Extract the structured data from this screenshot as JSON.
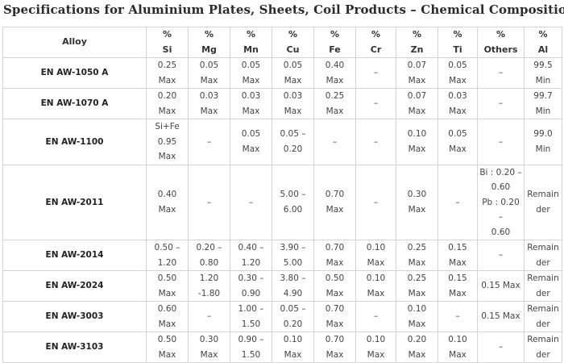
{
  "title": "Specifications for Aluminium Plates, Sheets, Coil Products – Chemical Composition",
  "columns": [
    {
      "pct": "",
      "name": "Alloy"
    },
    {
      "pct": "%",
      "name": "Si"
    },
    {
      "pct": "%",
      "name": "Mg"
    },
    {
      "pct": "%",
      "name": "Mn"
    },
    {
      "pct": "%",
      "name": "Cu"
    },
    {
      "pct": "%",
      "name": "Fe"
    },
    {
      "pct": "%",
      "name": "Cr"
    },
    {
      "pct": "%",
      "name": "Zn"
    },
    {
      "pct": "%",
      "name": "Ti"
    },
    {
      "pct": "%",
      "name": "Others"
    },
    {
      "pct": "%",
      "name": "Al"
    }
  ],
  "rows": [
    {
      "alloy": "EN AW-1050 A",
      "cells": [
        [
          "0.25",
          "Max"
        ],
        [
          "0.05",
          "Max"
        ],
        [
          "0.05",
          "Max"
        ],
        [
          "0.05",
          "Max"
        ],
        [
          "0.40",
          "Max"
        ],
        [
          "–"
        ],
        [
          "0.07",
          "Max"
        ],
        [
          "0.05",
          "Max"
        ],
        [
          "–"
        ],
        [
          "99.5 Min"
        ]
      ]
    },
    {
      "alloy": "EN AW-1070 A",
      "cells": [
        [
          "0.20",
          "Max"
        ],
        [
          "0.03",
          "Max"
        ],
        [
          "0.03",
          "Max"
        ],
        [
          "0.03",
          "Max"
        ],
        [
          "0.25",
          "Max"
        ],
        [
          "–"
        ],
        [
          "0.07",
          "Max"
        ],
        [
          "0.03",
          "Max"
        ],
        [
          "–"
        ],
        [
          "99.7 Min"
        ]
      ]
    },
    {
      "alloy": "EN AW-1100",
      "cells": [
        [
          "Si+Fe",
          "0.95 Max"
        ],
        [
          "–"
        ],
        [
          "0.05 Max"
        ],
        [
          "0.05 –",
          "0.20"
        ],
        [
          "–"
        ],
        [
          "–"
        ],
        [
          "0.10 Max"
        ],
        [
          "0.05 Max"
        ],
        [
          "–"
        ],
        [
          "99.0 Min"
        ]
      ]
    },
    {
      "alloy": "EN AW-2011",
      "cells": [
        [
          "0.40 Max"
        ],
        [
          "–"
        ],
        [
          "–"
        ],
        [
          "5.00 –",
          "6.00"
        ],
        [
          "0.70 Max"
        ],
        [
          "–"
        ],
        [
          "0.30 Max"
        ],
        [
          "–"
        ],
        [
          "Bi : 0.20 –",
          "0.60",
          "Pb : 0.20 –",
          "0.60"
        ],
        [
          "Remainder"
        ]
      ]
    },
    {
      "alloy": "EN AW-2014",
      "cells": [
        [
          "0.50 –",
          "1.20"
        ],
        [
          "0.20 –",
          "0.80"
        ],
        [
          "0.40 –",
          "1.20"
        ],
        [
          "3.90 –",
          "5.00"
        ],
        [
          "0.70 Max"
        ],
        [
          "0.10 Max"
        ],
        [
          "0.25 Max"
        ],
        [
          "0.15 Max"
        ],
        [
          "–"
        ],
        [
          "Remainder"
        ]
      ]
    },
    {
      "alloy": "EN AW-2024",
      "cells": [
        [
          "0.50 Max"
        ],
        [
          "1.20 -1.80"
        ],
        [
          "0.30 –",
          "0.90"
        ],
        [
          "3.80 –",
          "4.90"
        ],
        [
          "0.50 Max"
        ],
        [
          "0.10 Max"
        ],
        [
          "0.25 Max"
        ],
        [
          "0.15 Max"
        ],
        [
          "0.15 Max"
        ],
        [
          "Remainder"
        ]
      ]
    },
    {
      "alloy": "EN AW-3003",
      "cells": [
        [
          "0.60 Max"
        ],
        [
          "–"
        ],
        [
          "1.00 –",
          "1.50"
        ],
        [
          "0.05 –",
          "0.20"
        ],
        [
          "0.70 Max"
        ],
        [
          "–"
        ],
        [
          "0.10 Max"
        ],
        [
          "–"
        ],
        [
          "0.15 Max"
        ],
        [
          "Remainder"
        ]
      ]
    },
    {
      "alloy": "EN AW-3103",
      "cells": [
        [
          "0.50 Max"
        ],
        [
          "0.30 Max"
        ],
        [
          "0.90 –",
          "1.50"
        ],
        [
          "0.10 Max"
        ],
        [
          "0.70 Max"
        ],
        [
          "0.10 Max"
        ],
        [
          "0.20 Max"
        ],
        [
          "0.10 Max"
        ],
        [
          "–"
        ],
        [
          "Remainder"
        ]
      ]
    }
  ]
}
